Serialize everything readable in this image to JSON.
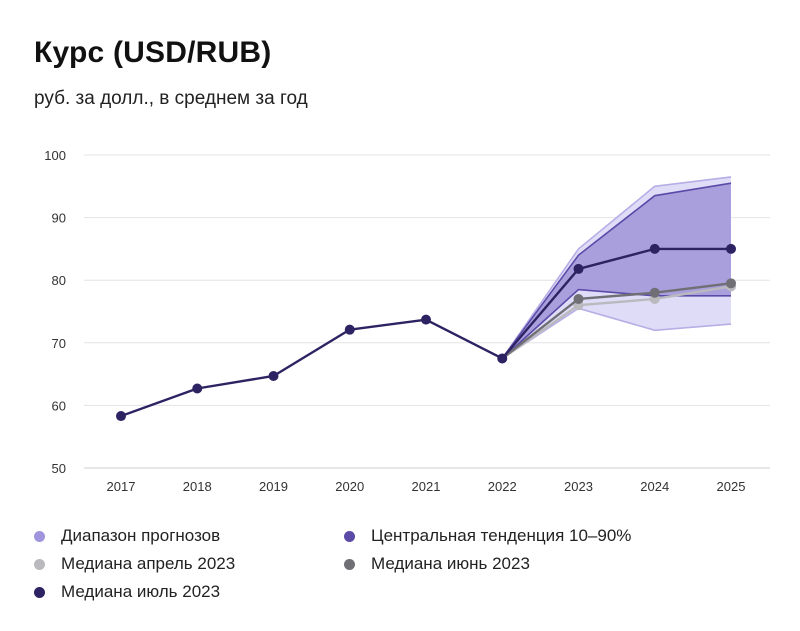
{
  "title": "Курс (USD/RUB)",
  "subtitle": "руб. за долл., в среднем за год",
  "colors": {
    "range": "#9f95dc",
    "central": "#5b4aa8",
    "median_apr": "#b9b9be",
    "median_jun": "#6f6f75",
    "median_jul": "#2d2363",
    "grid": "#e3e3e8"
  },
  "chart_data": {
    "type": "line",
    "x": [
      "2017",
      "2018",
      "2019",
      "2020",
      "2021",
      "2022",
      "2023",
      "2024",
      "2025"
    ],
    "ylim": [
      50,
      100
    ],
    "yticks": [
      "50",
      "60",
      "70",
      "80",
      "90",
      "100"
    ],
    "grid": true,
    "legend_position": "bottom",
    "bands": [
      {
        "name": "Диапазон прогнозов",
        "x": [
          "2022",
          "2023",
          "2024",
          "2025"
        ],
        "lower": [
          67.5,
          75.5,
          72.0,
          73.0
        ],
        "upper": [
          67.5,
          85.0,
          95.0,
          96.5
        ]
      },
      {
        "name": "Центральная тенденция 10–90%",
        "x": [
          "2022",
          "2023",
          "2024",
          "2025"
        ],
        "lower": [
          67.5,
          78.5,
          77.5,
          77.5
        ],
        "upper": [
          67.5,
          84.0,
          93.5,
          95.5
        ]
      }
    ],
    "series": [
      {
        "name": "Медиана апрель 2023",
        "x": [
          "2022",
          "2023",
          "2024",
          "2025"
        ],
        "values": [
          67.5,
          76.0,
          77.0,
          79.0
        ]
      },
      {
        "name": "Медиана июнь 2023",
        "x": [
          "2022",
          "2023",
          "2024",
          "2025"
        ],
        "values": [
          67.5,
          77.0,
          78.0,
          79.5
        ]
      },
      {
        "name": "Медиана июль 2023",
        "x": [
          "2017",
          "2018",
          "2019",
          "2020",
          "2021",
          "2022",
          "2023",
          "2024",
          "2025"
        ],
        "values": [
          58.3,
          62.7,
          64.7,
          72.1,
          73.7,
          67.5,
          81.8,
          85.0,
          85.0
        ]
      }
    ]
  },
  "legend": {
    "items": [
      {
        "label": "Диапазон прогнозов",
        "color_key": "range"
      },
      {
        "label": "Центральная тенденция 10–90%",
        "color_key": "central"
      },
      {
        "label": "Медиана апрель 2023",
        "color_key": "median_apr"
      },
      {
        "label": "Медиана июнь 2023",
        "color_key": "median_jun"
      },
      {
        "label": "Медиана июль 2023",
        "color_key": "median_jul"
      }
    ]
  }
}
